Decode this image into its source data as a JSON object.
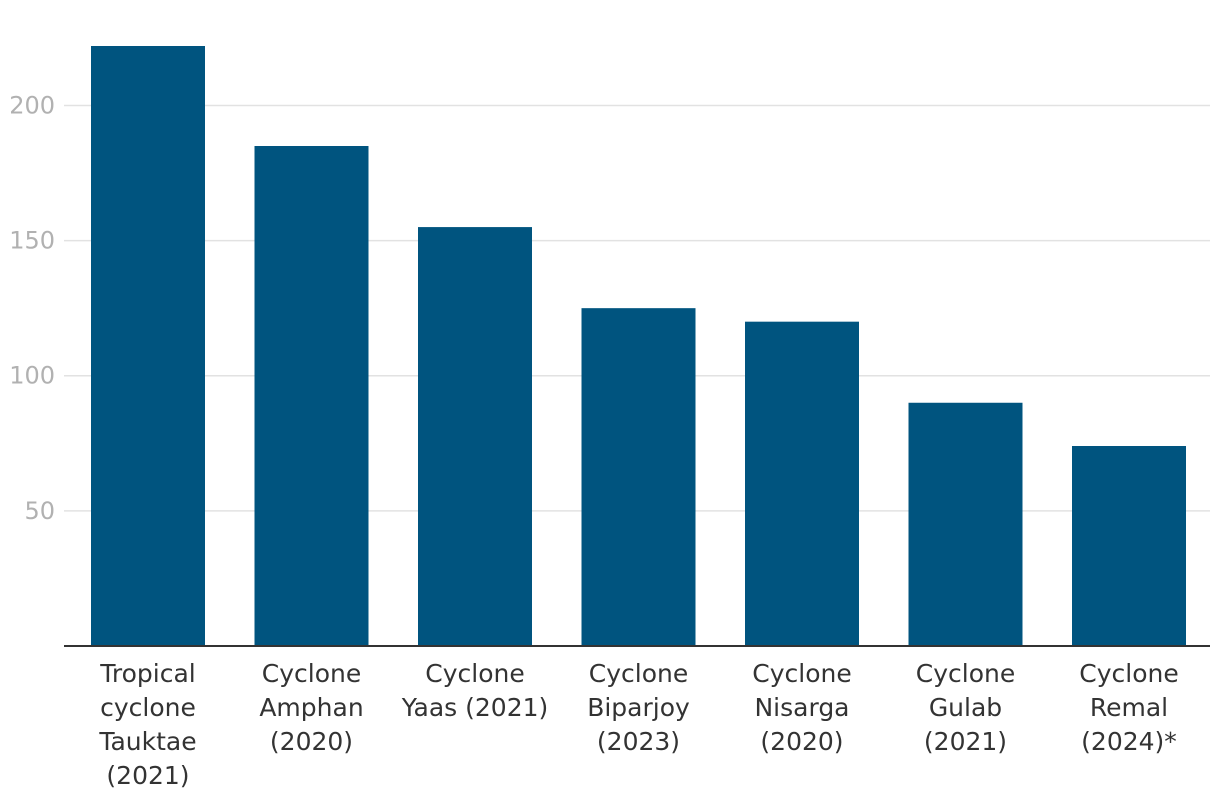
{
  "chart_data": {
    "type": "bar",
    "title": "",
    "xlabel": "",
    "ylabel": "",
    "categories": [
      "Tropical cyclone Tauktae (2021)",
      "Cyclone Amphan (2020)",
      "Cyclone Yaas (2021)",
      "Cyclone Biparjoy (2023)",
      "Cyclone Nisarga (2020)",
      "Cyclone Gulab (2021)",
      "Cyclone Remal (2024)*"
    ],
    "category_label_lines": [
      [
        "Tropical",
        "cyclone",
        "Tauktae",
        "(2021)"
      ],
      [
        "Cyclone",
        "Amphan",
        "(2020)"
      ],
      [
        "Cyclone",
        "Yaas (2021)"
      ],
      [
        "Cyclone",
        "Biparjoy",
        "(2023)"
      ],
      [
        "Cyclone",
        "Nisarga",
        "(2020)"
      ],
      [
        "Cyclone",
        "Gulab",
        "(2021)"
      ],
      [
        "Cyclone",
        "Remal",
        "(2024)*"
      ]
    ],
    "values": [
      222,
      185,
      155,
      125,
      120,
      90,
      74
    ],
    "ylim": [
      0,
      222
    ],
    "yticks": [
      50,
      100,
      150,
      200
    ],
    "ytick_labels": [
      "50",
      "100",
      "150",
      "200"
    ],
    "grid": true,
    "bar_color": "#00547f"
  }
}
